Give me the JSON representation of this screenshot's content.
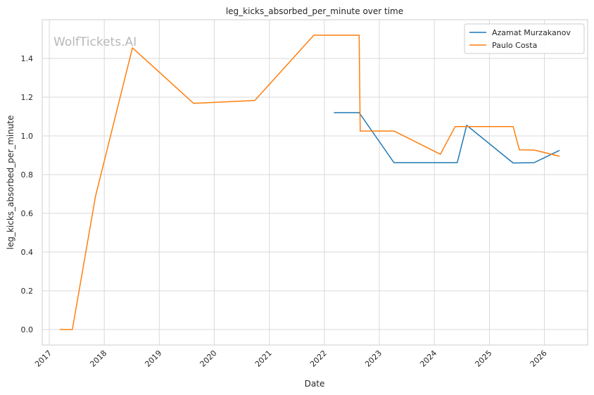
{
  "chart_data": {
    "type": "line",
    "title": "leg_kicks_absorbed_per_minute over time",
    "xlabel": "Date",
    "ylabel": "leg_kicks_absorbed_per_minute",
    "watermark": "WolfTickets.AI",
    "x_tick_labels": [
      "2017",
      "2018",
      "2019",
      "2020",
      "2021",
      "2022",
      "2023",
      "2024",
      "2025",
      "2026"
    ],
    "y_tick_labels": [
      "0.0",
      "0.2",
      "0.4",
      "0.6",
      "0.8",
      "1.0",
      "1.2",
      "1.4"
    ],
    "xlim": [
      "2016-11-15",
      "2026-10-15"
    ],
    "ylim": [
      -0.08,
      1.6
    ],
    "grid": true,
    "legend_position": "top-right",
    "series": [
      {
        "name": "Azamat Murzakanov",
        "color": "#1f77b4",
        "points": [
          {
            "x": "2022-03-05",
            "y": 1.12
          },
          {
            "x": "2022-08-20",
            "y": 1.12
          },
          {
            "x": "2023-04-08",
            "y": 0.862
          },
          {
            "x": "2024-06-01",
            "y": 0.862
          },
          {
            "x": "2024-08-03",
            "y": 1.055
          },
          {
            "x": "2025-06-07",
            "y": 0.86
          },
          {
            "x": "2025-10-25",
            "y": 0.862
          },
          {
            "x": "2026-04-11",
            "y": 0.925
          }
        ]
      },
      {
        "name": "Paulo Costa",
        "color": "#ff7f0e",
        "points": [
          {
            "x": "2017-03-11",
            "y": 0.0
          },
          {
            "x": "2017-06-03",
            "y": 0.0
          },
          {
            "x": "2017-11-04",
            "y": 0.69
          },
          {
            "x": "2018-07-07",
            "y": 1.455
          },
          {
            "x": "2019-08-17",
            "y": 1.168
          },
          {
            "x": "2020-09-26",
            "y": 1.183
          },
          {
            "x": "2021-10-23",
            "y": 1.52
          },
          {
            "x": "2022-08-20",
            "y": 1.52
          },
          {
            "x": "2022-08-27",
            "y": 1.025
          },
          {
            "x": "2023-04-08",
            "y": 1.025
          },
          {
            "x": "2024-02-10",
            "y": 0.905
          },
          {
            "x": "2024-05-18",
            "y": 1.048
          },
          {
            "x": "2025-06-07",
            "y": 1.048
          },
          {
            "x": "2025-07-19",
            "y": 0.928
          },
          {
            "x": "2025-10-25",
            "y": 0.927
          },
          {
            "x": "2026-04-11",
            "y": 0.895
          }
        ]
      }
    ]
  }
}
